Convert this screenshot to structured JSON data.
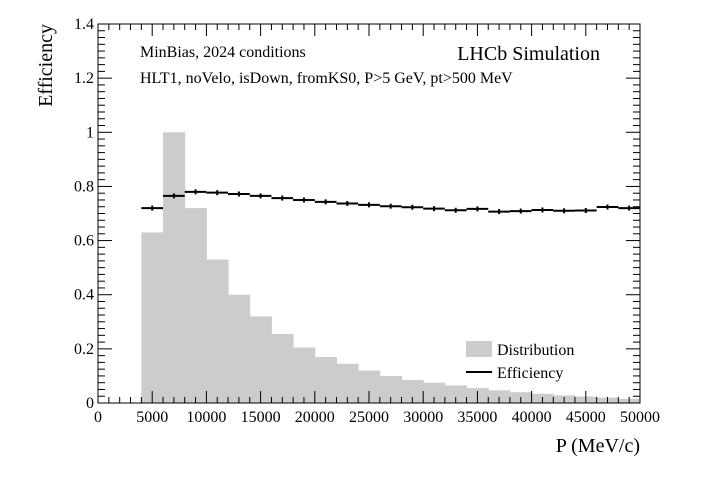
{
  "chart_data": {
    "type": "bar",
    "title": "",
    "xlabel": "P (MeV/c)",
    "ylabel": "Efficiency",
    "xlim": [
      0,
      50000
    ],
    "ylim": [
      0,
      1.4
    ],
    "x_ticks": [
      0,
      5000,
      10000,
      15000,
      20000,
      25000,
      30000,
      35000,
      40000,
      45000,
      50000
    ],
    "y_ticks": [
      0,
      0.2,
      0.4,
      0.6,
      0.8,
      1,
      1.2,
      1.4
    ],
    "annotations": {
      "sample": "MinBias, 2024 conditions",
      "selection": "HLT1, noVelo, isDown, fromKS0, P>5 GeV, pt>500 MeV",
      "experiment": "LHCb Simulation"
    },
    "legend": {
      "placement": "bottom-right",
      "entries": [
        {
          "label": "Distribution",
          "style": "filled-box",
          "color": "#cccccc"
        },
        {
          "label": "Efficiency",
          "style": "line",
          "color": "#000000"
        }
      ]
    },
    "series": [
      {
        "name": "Distribution",
        "kind": "histogram",
        "color": "#cccccc",
        "bin_edges": [
          4000,
          6000,
          8000,
          10000,
          12000,
          14000,
          16000,
          18000,
          20000,
          22000,
          24000,
          26000,
          28000,
          30000,
          32000,
          34000,
          36000,
          38000,
          40000,
          42000,
          44000,
          46000,
          48000,
          50000
        ],
        "values": [
          0.63,
          1.0,
          0.72,
          0.53,
          0.4,
          0.32,
          0.255,
          0.205,
          0.17,
          0.145,
          0.12,
          0.1,
          0.085,
          0.075,
          0.065,
          0.055,
          0.047,
          0.04,
          0.034,
          0.028,
          0.024,
          0.02,
          0.015
        ]
      },
      {
        "name": "Efficiency",
        "kind": "points-with-xerrors",
        "color": "#000000",
        "bin_edges": [
          4000,
          6000,
          8000,
          10000,
          12000,
          14000,
          16000,
          18000,
          20000,
          22000,
          24000,
          26000,
          28000,
          30000,
          32000,
          34000,
          36000,
          38000,
          40000,
          42000,
          44000,
          46000,
          48000,
          50000
        ],
        "values": [
          0.72,
          0.765,
          0.78,
          0.777,
          0.772,
          0.765,
          0.757,
          0.75,
          0.743,
          0.737,
          0.732,
          0.727,
          0.723,
          0.718,
          0.712,
          0.717,
          0.707,
          0.709,
          0.713,
          0.71,
          0.711,
          0.724,
          0.72
        ]
      }
    ]
  }
}
